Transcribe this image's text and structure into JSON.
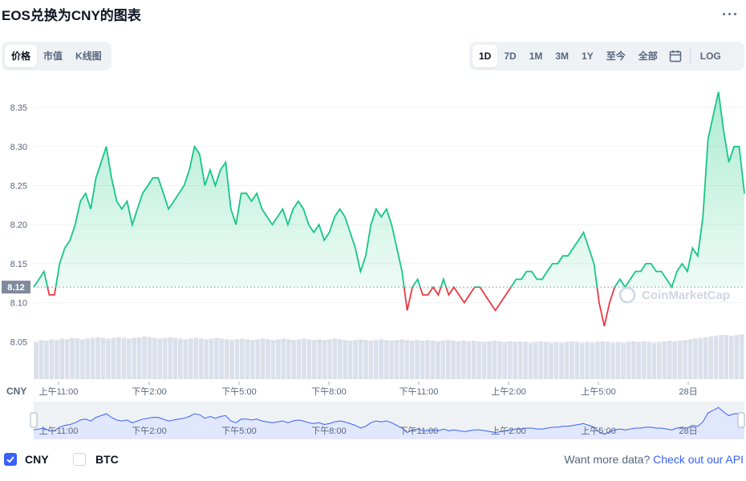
{
  "title": "EOS兑换为CNY的图表",
  "more_label": "···",
  "view_tabs": [
    {
      "label": "价格",
      "active": true
    },
    {
      "label": "市值",
      "active": false
    },
    {
      "label": "K线图",
      "active": false
    }
  ],
  "range_tabs": [
    {
      "label": "1D",
      "active": true
    },
    {
      "label": "7D",
      "active": false
    },
    {
      "label": "1M",
      "active": false
    },
    {
      "label": "3M",
      "active": false
    },
    {
      "label": "1Y",
      "active": false
    },
    {
      "label": "至今",
      "active": false
    },
    {
      "label": "全部",
      "active": false
    }
  ],
  "calendar_icon": "calendar-icon",
  "log_label": "LOG",
  "colors": {
    "up": "#16c784",
    "down": "#ea3943",
    "volume": "#cfd6e4",
    "nav_line": "#3861fb",
    "accent": "#3861fb"
  },
  "chart_data": {
    "type": "line",
    "currency_label": "CNY",
    "y_ticks": [
      8.05,
      8.1,
      8.15,
      8.2,
      8.25,
      8.3,
      8.35
    ],
    "ylim": [
      8.0,
      8.385
    ],
    "reference_value": 8.12,
    "reference_label": "8.12",
    "x_labels": [
      "上午11:00",
      "下午2:00",
      "下午5:00",
      "下午8:00",
      "下午11:00",
      "上午2:00",
      "上午5:00",
      "28日"
    ],
    "watermark": "CoinMarketCap",
    "series": [
      {
        "values": [
          8.12,
          8.13,
          8.14,
          8.11,
          8.11,
          8.15,
          8.17,
          8.18,
          8.2,
          8.23,
          8.24,
          8.22,
          8.26,
          8.28,
          8.3,
          8.26,
          8.23,
          8.22,
          8.23,
          8.2,
          8.22,
          8.24,
          8.25,
          8.26,
          8.26,
          8.24,
          8.22,
          8.23,
          8.24,
          8.25,
          8.27,
          8.3,
          8.29,
          8.25,
          8.27,
          8.25,
          8.27,
          8.28,
          8.22,
          8.2,
          8.24,
          8.24,
          8.23,
          8.24,
          8.22,
          8.21,
          8.2,
          8.21,
          8.22,
          8.2,
          8.22,
          8.23,
          8.22,
          8.2,
          8.19,
          8.2,
          8.18,
          8.19,
          8.21,
          8.22,
          8.21,
          8.19,
          8.17,
          8.14,
          8.16,
          8.2,
          8.22,
          8.21,
          8.22,
          8.2,
          8.17,
          8.14,
          8.09,
          8.12,
          8.13,
          8.11,
          8.11,
          8.12,
          8.11,
          8.13,
          8.11,
          8.12,
          8.11,
          8.1,
          8.11,
          8.12,
          8.12,
          8.11,
          8.1,
          8.09,
          8.1,
          8.11,
          8.12,
          8.13,
          8.13,
          8.14,
          8.14,
          8.13,
          8.13,
          8.14,
          8.15,
          8.15,
          8.16,
          8.16,
          8.17,
          8.18,
          8.19,
          8.17,
          8.15,
          8.1,
          8.07,
          8.1,
          8.12,
          8.13,
          8.12,
          8.13,
          8.14,
          8.14,
          8.15,
          8.15,
          8.14,
          8.14,
          8.13,
          8.12,
          8.14,
          8.15,
          8.14,
          8.17,
          8.16,
          8.21,
          8.31,
          8.34,
          8.37,
          8.32,
          8.28,
          8.3,
          8.3,
          8.24
        ]
      }
    ],
    "volume": [
      0.52,
      0.55,
      0.54,
      0.56,
      0.55,
      0.57,
      0.56,
      0.58,
      0.57,
      0.56,
      0.57,
      0.58,
      0.59,
      0.58,
      0.57,
      0.58,
      0.59,
      0.58,
      0.57,
      0.58,
      0.59,
      0.6,
      0.59,
      0.58,
      0.57,
      0.58,
      0.59,
      0.58,
      0.57,
      0.56,
      0.57,
      0.58,
      0.57,
      0.56,
      0.57,
      0.58,
      0.57,
      0.56,
      0.55,
      0.56,
      0.57,
      0.56,
      0.55,
      0.56,
      0.57,
      0.56,
      0.55,
      0.56,
      0.57,
      0.56,
      0.55,
      0.56,
      0.57,
      0.56,
      0.55,
      0.56,
      0.55,
      0.56,
      0.57,
      0.56,
      0.55,
      0.54,
      0.55,
      0.56,
      0.55,
      0.54,
      0.55,
      0.56,
      0.55,
      0.54,
      0.55,
      0.56,
      0.55,
      0.54,
      0.55,
      0.54,
      0.55,
      0.54,
      0.53,
      0.54,
      0.55,
      0.54,
      0.53,
      0.54,
      0.53,
      0.54,
      0.53,
      0.52,
      0.53,
      0.54,
      0.53,
      0.52,
      0.53,
      0.52,
      0.53,
      0.52,
      0.51,
      0.52,
      0.53,
      0.52,
      0.51,
      0.52,
      0.51,
      0.52,
      0.53,
      0.52,
      0.51,
      0.52,
      0.51,
      0.52,
      0.53,
      0.52,
      0.51,
      0.52,
      0.51,
      0.52,
      0.53,
      0.52,
      0.53,
      0.52,
      0.51,
      0.52,
      0.53,
      0.54,
      0.53,
      0.54,
      0.55,
      0.56,
      0.57,
      0.58,
      0.59,
      0.6,
      0.61,
      0.62,
      0.62,
      0.61,
      0.62,
      0.63
    ]
  },
  "legend": [
    {
      "label": "CNY",
      "checked": true
    },
    {
      "label": "BTC",
      "checked": false
    }
  ],
  "api_prompt": "Want more data?",
  "api_link": "Check out our API"
}
